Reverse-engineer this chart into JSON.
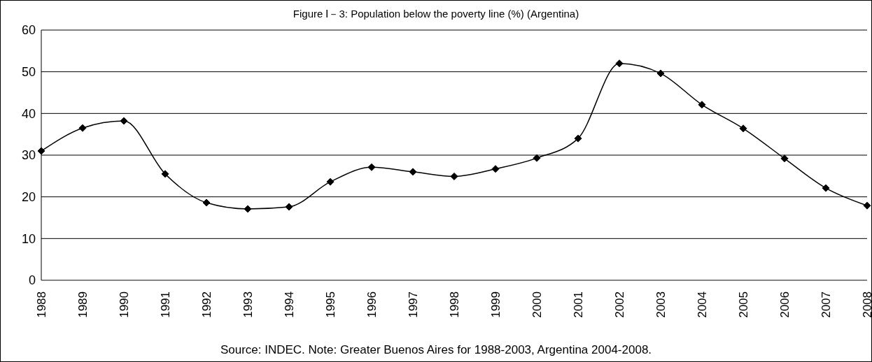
{
  "chart_data": {
    "type": "line",
    "title": "Figure Ⅰ－3: Population below the poverty line (%) (Argentina)",
    "categories": [
      "1988",
      "1989",
      "1990",
      "1991",
      "1992",
      "1993",
      "1994",
      "1995",
      "1996",
      "1997",
      "1998",
      "1999",
      "2000",
      "2001",
      "2002",
      "2003",
      "2004",
      "2005",
      "2006",
      "2007",
      "2008"
    ],
    "series": [
      {
        "color": "#000000",
        "values": [
          31.0,
          36.5,
          38.2,
          25.5,
          18.6,
          17.1,
          17.6,
          23.6,
          27.1,
          26.0,
          24.9,
          26.7,
          29.3,
          34.0,
          52.0,
          49.6,
          42.1,
          36.4,
          29.2,
          22.1,
          17.9
        ]
      }
    ],
    "ylim": [
      0,
      60
    ],
    "yticks": [
      0,
      10,
      20,
      30,
      40,
      50,
      60
    ],
    "grid": "y",
    "marker": "diamond",
    "annotations": [
      "Source: INDEC. Note: Greater Buenos Aires for 1988-2003, Argentina 2004-2008."
    ]
  }
}
